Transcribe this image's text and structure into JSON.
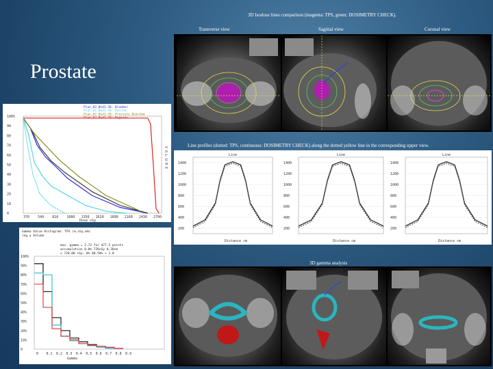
{
  "slide": {
    "title": "Prostate",
    "top_caption": "3D Isodose lines comparison (magenta: TPS, green: DOSIMETRY CHECK).",
    "view_labels": [
      "Transverse view",
      "Sagittal view",
      "Coronal view"
    ],
    "line_profile_caption": "Line profiles (dotted: TPS, continuous: DOSIMETRY CHECK) along the dotted yellow line in the corresponding upper view.",
    "gamma_caption": "3D gamma analysis"
  },
  "dvh_chart": {
    "legend": [
      "Plan_02_Bed1-20: Bladder",
      "Plan_02_Bed1-20: Rectum",
      "Plan_02_Bed1-20: Prostate_Bed+3mm",
      "Plan_02_Bed1-20: Regions"
    ],
    "y_ticks": [
      "100%",
      "90",
      "80",
      "70",
      "60",
      "50",
      "40",
      "30",
      "20",
      "10",
      "0"
    ],
    "x_ticks": [
      "370",
      "549",
      "810",
      "1080",
      "1350",
      "1620",
      "1890",
      "2160",
      "2430",
      "2700"
    ],
    "x_label": "Dose cGy",
    "y_side_label": "V O L U M E",
    "colors": {
      "bladder": "#2b2bdc",
      "rectum": "#4ed6e0",
      "prostate": "#e02020",
      "regions": "#8a8a20",
      "dark": "#3a3a3a"
    }
  },
  "profiles": {
    "headers": [
      "Line",
      "Line",
      "Line"
    ],
    "y_ticks": [
      "1400",
      "1200",
      "1000",
      "800",
      "600",
      "400",
      "200"
    ],
    "x_label": "Distance cm"
  },
  "gamma_histogram": {
    "header_lines": [
      "Gamma Value Histogram: TPS (%,cGy,mm)",
      "log y Volume"
    ],
    "stats_lines": [
      "max. gamma = 2.72 for 477.5 points",
      "accumulation 0.0% 720cGy 0.30cm",
      "< 720.00 cGy: 0% 80.50% < 1.0"
    ],
    "y_ticks": [
      "100%",
      "90%",
      "80%",
      "70%",
      "60%",
      "50%",
      "40%",
      "30%",
      "20%",
      "10%",
      "0"
    ],
    "x_ticks": [
      "0",
      "0.1",
      "0.2",
      "0.3",
      "0.4",
      "0.5",
      "0.6",
      "0.7",
      "0.8",
      "0.9"
    ],
    "x_label": "Gamma",
    "colors": {
      "black": "#111111",
      "cyan": "#3fbfd6",
      "red": "#e04040"
    }
  }
}
